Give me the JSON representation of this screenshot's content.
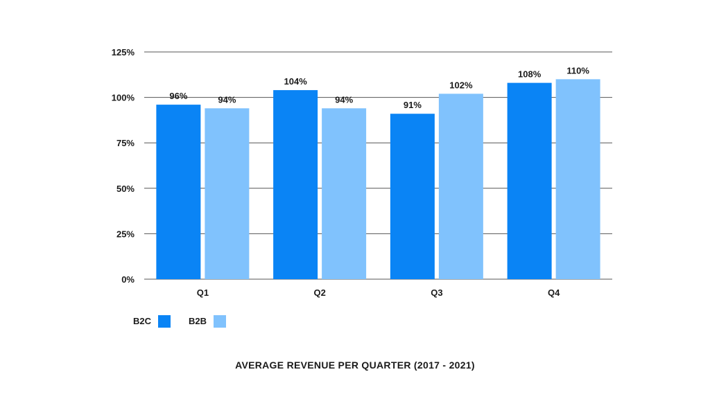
{
  "chart_data": {
    "type": "bar",
    "title": "AVERAGE REVENUE PER QUARTER (2017 - 2021)",
    "categories": [
      "Q1",
      "Q2",
      "Q3",
      "Q4"
    ],
    "series": [
      {
        "name": "B2C",
        "values": [
          96,
          104,
          91,
          108
        ],
        "labels": [
          "96%",
          "104%",
          "91%",
          "108%"
        ],
        "color": "#0a84f5"
      },
      {
        "name": "B2B",
        "values": [
          94,
          94,
          102,
          110
        ],
        "labels": [
          "94%",
          "94%",
          "102%",
          "110%"
        ],
        "color": "#80c2fd"
      }
    ],
    "ylim": [
      0,
      125
    ],
    "yticks": [
      0,
      25,
      50,
      75,
      100,
      125
    ],
    "ytick_labels": [
      "0%",
      "25%",
      "50%",
      "75%",
      "100%",
      "125%"
    ],
    "xlabel": "",
    "ylabel": "",
    "grid": true,
    "legend_position": "bottom-left"
  }
}
